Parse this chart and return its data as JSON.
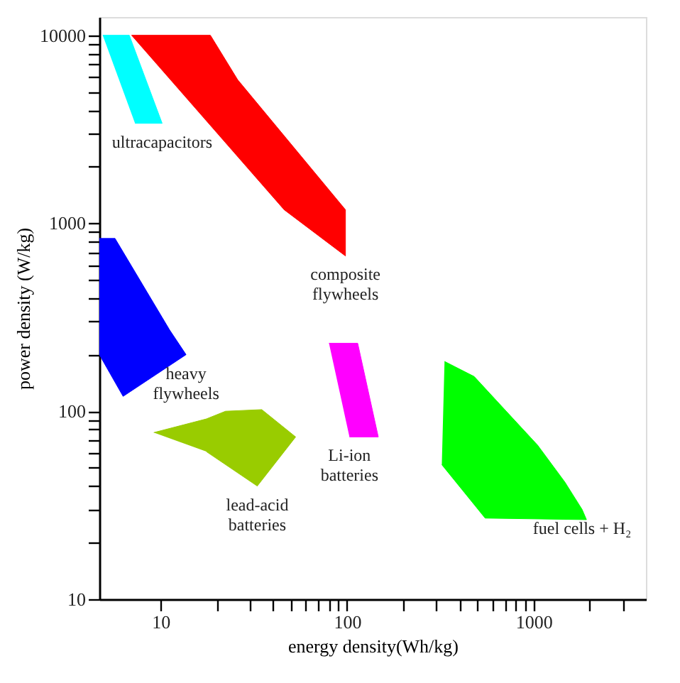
{
  "chart_data": {
    "type": "area",
    "xlabel": "energy density(Wh/kg)",
    "ylabel": "power density (W/kg)",
    "log": "xy",
    "grid": false,
    "xlim": [
      4.7,
      4000
    ],
    "ylim": [
      10,
      12500
    ],
    "xticks": [
      10,
      {
        "value": 20,
        "label": null
      },
      {
        "value": 30,
        "label": null
      },
      {
        "value": 40,
        "label": null
      },
      {
        "value": 50,
        "label": null
      },
      {
        "value": 60,
        "label": null
      },
      {
        "value": 70,
        "label": null
      },
      {
        "value": 80,
        "label": null
      },
      {
        "value": 90,
        "label": null
      },
      100,
      {
        "value": 200,
        "label": null
      },
      {
        "value": 300,
        "label": null
      },
      {
        "value": 400,
        "label": null
      },
      {
        "value": 500,
        "label": null
      },
      {
        "value": 600,
        "label": null
      },
      {
        "value": 700,
        "label": null
      },
      {
        "value": 800,
        "label": null
      },
      {
        "value": 900,
        "label": null
      },
      1000,
      {
        "value": 2000,
        "label": null
      },
      {
        "value": 3000,
        "label": null
      }
    ],
    "yticks": [
      10,
      {
        "value": 20,
        "label": null
      },
      {
        "value": 30,
        "label": null
      },
      {
        "value": 40,
        "label": null
      },
      {
        "value": 50,
        "label": null
      },
      {
        "value": 60,
        "label": null
      },
      {
        "value": 70,
        "label": null
      },
      {
        "value": 80,
        "label": null
      },
      {
        "value": 90,
        "label": null
      },
      100,
      {
        "value": 200,
        "label": null
      },
      {
        "value": 300,
        "label": null
      },
      {
        "value": 400,
        "label": null
      },
      {
        "value": 500,
        "label": null
      },
      {
        "value": 600,
        "label": null
      },
      {
        "value": 700,
        "label": null
      },
      {
        "value": 800,
        "label": null
      },
      {
        "value": 900,
        "label": null
      },
      1000,
      {
        "value": 2000,
        "label": null
      },
      {
        "value": 3000,
        "label": null
      },
      {
        "value": 4000,
        "label": null
      },
      {
        "value": 5000,
        "label": null
      },
      {
        "value": 6000,
        "label": null
      },
      {
        "value": 7000,
        "label": null
      },
      {
        "value": 8000,
        "label": null
      },
      {
        "value": 9000,
        "label": null
      },
      10000
    ],
    "series": [
      {
        "color": "#00ffff",
        "x": [
          4.9,
          6.8,
          10.2,
          7.3
        ],
        "values": [
          10000,
          10000,
          3400,
          3400
        ]
      },
      {
        "color": "#ff0000",
        "x": [
          7.0,
          18.5,
          25.9,
          98,
          98,
          46,
          7.0
        ],
        "values": [
          10000,
          10000,
          5800,
          1180,
          670,
          1180,
          10000
        ]
      },
      {
        "color": "#0000ff",
        "x": [
          4.7,
          5.7,
          11.2,
          13.7,
          6.3,
          4.7
        ],
        "values": [
          830,
          830,
          270,
          200,
          120,
          200
        ]
      },
      {
        "color": "#99cc00",
        "x": [
          9.2,
          17.6,
          22.3,
          34.9,
          53,
          33,
          17.6
        ],
        "values": [
          77,
          91,
          100,
          102,
          73,
          40,
          61
        ]
      },
      {
        "color": "#ff00ff",
        "x": [
          80,
          114,
          147,
          103
        ],
        "values": [
          230,
          230,
          73,
          73
        ]
      },
      {
        "color": "#00ff00",
        "x": [
          333,
          480,
          700,
          1050,
          1470,
          1820,
          1920,
          550,
          322
        ],
        "values": [
          184,
          153,
          102,
          66,
          42,
          30,
          26.5,
          27,
          52
        ]
      }
    ],
    "annotations": [
      {
        "text": "ultracapacitors",
        "x": 10.2,
        "y": 3400
      },
      {
        "text": "composite\nflywheels",
        "x": 98,
        "y": 670
      },
      {
        "text": "heavy\nflywheels",
        "x": 13.7,
        "y": 200
      },
      {
        "text": "lead-acid\nbatteries",
        "x": 33,
        "y": 40
      },
      {
        "text": "Li-ion\nbatteries",
        "x": 103,
        "y": 73
      },
      {
        "text": "fuel cells + H₂",
        "x": 1820,
        "y": 30
      }
    ]
  }
}
